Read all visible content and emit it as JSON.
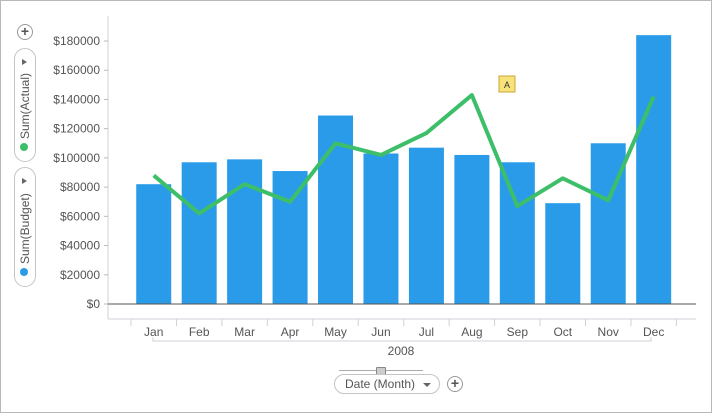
{
  "legend": {
    "add_icon": "plus-icon",
    "items": [
      {
        "label": "Sum(Actual)",
        "color": "#3dbf6a"
      },
      {
        "label": "Sum(Budget)",
        "color": "#2a9be8"
      }
    ]
  },
  "x_axis": {
    "selector_label": "Date (Month)",
    "group_label": "2008"
  },
  "chart_data": {
    "type": "bar",
    "categories": [
      "Jan",
      "Feb",
      "Mar",
      "Apr",
      "May",
      "Jun",
      "Jul",
      "Aug",
      "Sep",
      "Oct",
      "Nov",
      "Dec"
    ],
    "ylim": [
      0,
      180000
    ],
    "yticks": [
      0,
      20000,
      40000,
      60000,
      80000,
      100000,
      120000,
      140000,
      160000,
      180000
    ],
    "ytick_labels": [
      "$0",
      "$20000",
      "$40000",
      "$60000",
      "$80000",
      "$100000",
      "$120000",
      "$140000",
      "$160000",
      "$180000"
    ],
    "series": [
      {
        "name": "Sum(Budget)",
        "type": "bar",
        "color": "#2a9be8",
        "values": [
          82000,
          97000,
          99000,
          91000,
          129000,
          103000,
          107000,
          102000,
          97000,
          69000,
          110000,
          184000
        ]
      },
      {
        "name": "Sum(Actual)",
        "type": "line",
        "color": "#3dbf6a",
        "values": [
          88000,
          62000,
          82000,
          70000,
          110000,
          102000,
          117000,
          143000,
          67000,
          86000,
          71000,
          142000
        ]
      }
    ],
    "group_label": "2008",
    "grid": false,
    "legend_placement": "left"
  }
}
